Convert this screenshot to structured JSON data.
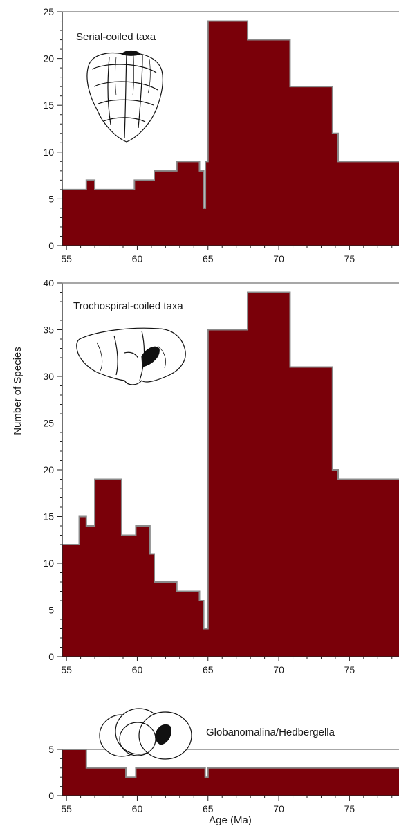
{
  "figure": {
    "ylabel": "Number of Species",
    "xlabel": "Age (Ma)"
  },
  "colors": {
    "fill": "#7a0009",
    "step_line": "#8a8a8a",
    "axis": "#222222"
  },
  "chart_data": [
    {
      "type": "area",
      "title": "Serial-coiled taxa",
      "icon": "serial-coiled-foraminifera-drawing",
      "xlim": [
        54.7,
        78.5
      ],
      "ylim": [
        0,
        25
      ],
      "xticks": [
        55,
        60,
        65,
        70,
        75
      ],
      "yticks": [
        0,
        5,
        10,
        15,
        20,
        25
      ],
      "grid": false,
      "x": [
        54.7,
        56.4,
        56.4,
        57.0,
        57.0,
        59.8,
        59.8,
        61.2,
        61.2,
        62.8,
        62.8,
        64.4,
        64.4,
        64.7,
        64.7,
        64.82,
        64.82,
        65.0,
        65.0,
        67.8,
        67.8,
        70.8,
        70.8,
        73.8,
        73.8,
        74.2,
        74.2,
        78.5
      ],
      "y": [
        6,
        6,
        7,
        7,
        6,
        6,
        7,
        7,
        8,
        8,
        9,
        9,
        8,
        8,
        4,
        4,
        9,
        9,
        24,
        24,
        22,
        22,
        17,
        17,
        12,
        12,
        9,
        9
      ]
    },
    {
      "type": "area",
      "title": "Trochospiral-coiled taxa",
      "icon": "trochospiral-coiled-foraminifera-drawing",
      "xlim": [
        54.7,
        78.5
      ],
      "ylim": [
        0,
        40
      ],
      "xticks": [
        55,
        60,
        65,
        70,
        75
      ],
      "yticks": [
        0,
        5,
        10,
        15,
        20,
        25,
        30,
        35,
        40
      ],
      "grid": false,
      "x": [
        54.7,
        55.9,
        55.9,
        56.4,
        56.4,
        57.0,
        57.0,
        58.9,
        58.9,
        59.9,
        59.9,
        60.9,
        60.9,
        61.2,
        61.2,
        62.8,
        62.8,
        64.4,
        64.4,
        64.7,
        64.7,
        65.0,
        65.0,
        67.8,
        67.8,
        70.8,
        70.8,
        73.8,
        73.8,
        74.2,
        74.2,
        78.5
      ],
      "y": [
        12,
        12,
        15,
        15,
        14,
        14,
        19,
        19,
        13,
        13,
        14,
        14,
        11,
        11,
        8,
        8,
        7,
        7,
        6,
        6,
        3,
        3,
        35,
        35,
        39,
        39,
        31,
        31,
        20,
        20,
        19,
        19
      ]
    },
    {
      "type": "area",
      "title": "Globanomalina/Hedbergella",
      "icon": "globanomalina-hedbergella-drawing",
      "xlim": [
        54.7,
        78.5
      ],
      "ylim": [
        0,
        5
      ],
      "xticks": [
        55,
        60,
        65,
        70,
        75
      ],
      "yticks": [
        0,
        5
      ],
      "xlabel": "Age (Ma)",
      "grid": false,
      "x": [
        54.7,
        56.4,
        56.4,
        59.2,
        59.2,
        59.9,
        59.9,
        64.8,
        64.8,
        65.0,
        65.0,
        78.5
      ],
      "y": [
        5,
        5,
        3,
        3,
        2,
        2,
        3,
        3,
        2,
        2,
        3,
        3
      ]
    }
  ]
}
